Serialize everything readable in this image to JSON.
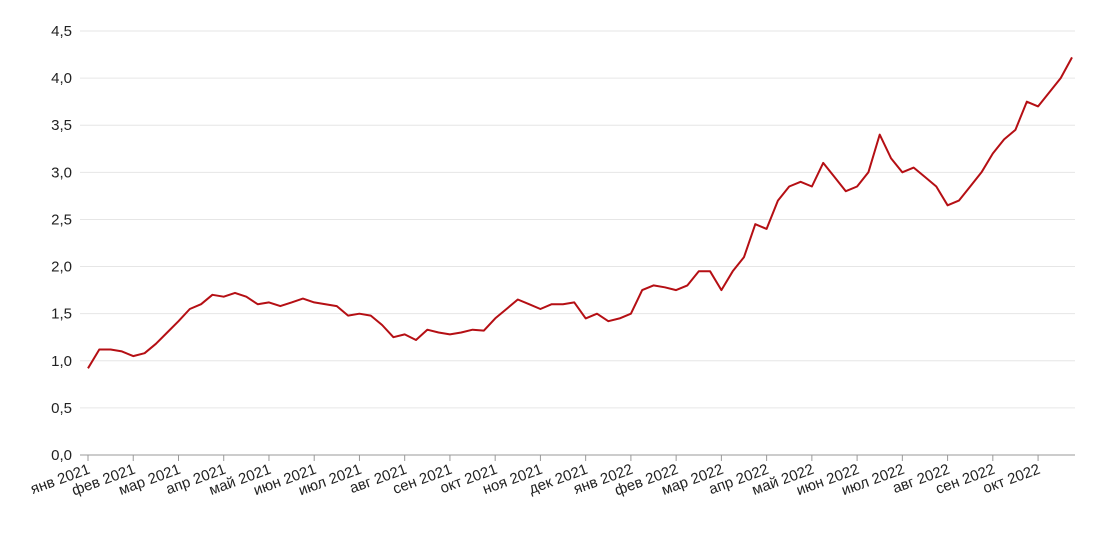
{
  "chart_data": {
    "type": "line",
    "color": "#b50f14",
    "grid": true,
    "ylim": [
      0,
      4.5
    ],
    "yticks": [
      {
        "value": 0,
        "label": "0,0"
      },
      {
        "value": 0.5,
        "label": "0,5"
      },
      {
        "value": 1,
        "label": "1,0"
      },
      {
        "value": 1.5,
        "label": "1,5"
      },
      {
        "value": 2,
        "label": "2,0"
      },
      {
        "value": 2.5,
        "label": "2,5"
      },
      {
        "value": 3,
        "label": "3,0"
      },
      {
        "value": 3.5,
        "label": "3,5"
      },
      {
        "value": 4,
        "label": "4,0"
      },
      {
        "value": 4.5,
        "label": "4,5"
      }
    ],
    "categories": [
      "янв 2021",
      null,
      null,
      null,
      "фев 2021",
      null,
      null,
      null,
      "мар 2021",
      null,
      null,
      null,
      "апр 2021",
      null,
      null,
      null,
      "май 2021",
      null,
      null,
      null,
      "июн 2021",
      null,
      null,
      null,
      "июл 2021",
      null,
      null,
      null,
      "авг 2021",
      null,
      null,
      null,
      "сен 2021",
      null,
      null,
      null,
      "окт 2021",
      null,
      null,
      null,
      "ноя 2021",
      null,
      null,
      null,
      "дек 2021",
      null,
      null,
      null,
      "янв 2022",
      null,
      null,
      null,
      "фев 2022",
      null,
      null,
      null,
      "мар 2022",
      null,
      null,
      null,
      "апр 2022",
      null,
      null,
      null,
      "май 2022",
      null,
      null,
      null,
      "июн 2022",
      null,
      null,
      null,
      "июл 2022",
      null,
      null,
      null,
      "авг 2022",
      null,
      null,
      null,
      "сен 2022",
      null,
      null,
      null,
      "окт 2022",
      null,
      null,
      null
    ],
    "values": [
      0.92,
      1.12,
      1.12,
      1.1,
      1.05,
      1.08,
      1.18,
      1.3,
      1.42,
      1.55,
      1.6,
      1.7,
      1.68,
      1.72,
      1.68,
      1.6,
      1.62,
      1.58,
      1.62,
      1.66,
      1.62,
      1.6,
      1.58,
      1.48,
      1.5,
      1.48,
      1.38,
      1.25,
      1.28,
      1.22,
      1.33,
      1.3,
      1.28,
      1.3,
      1.33,
      1.32,
      1.45,
      1.55,
      1.65,
      1.6,
      1.55,
      1.6,
      1.6,
      1.62,
      1.45,
      1.5,
      1.42,
      1.45,
      1.5,
      1.75,
      1.8,
      1.78,
      1.75,
      1.8,
      1.95,
      1.95,
      1.75,
      1.95,
      2.1,
      2.45,
      2.4,
      2.7,
      2.85,
      2.9,
      2.85,
      3.1,
      2.95,
      2.8,
      2.85,
      3.0,
      3.4,
      3.15,
      3.0,
      3.05,
      2.95,
      2.85,
      2.65,
      2.7,
      2.85,
      3.0,
      3.2,
      3.35,
      3.45,
      3.75,
      3.7,
      3.85,
      4.0,
      4.22
    ]
  }
}
